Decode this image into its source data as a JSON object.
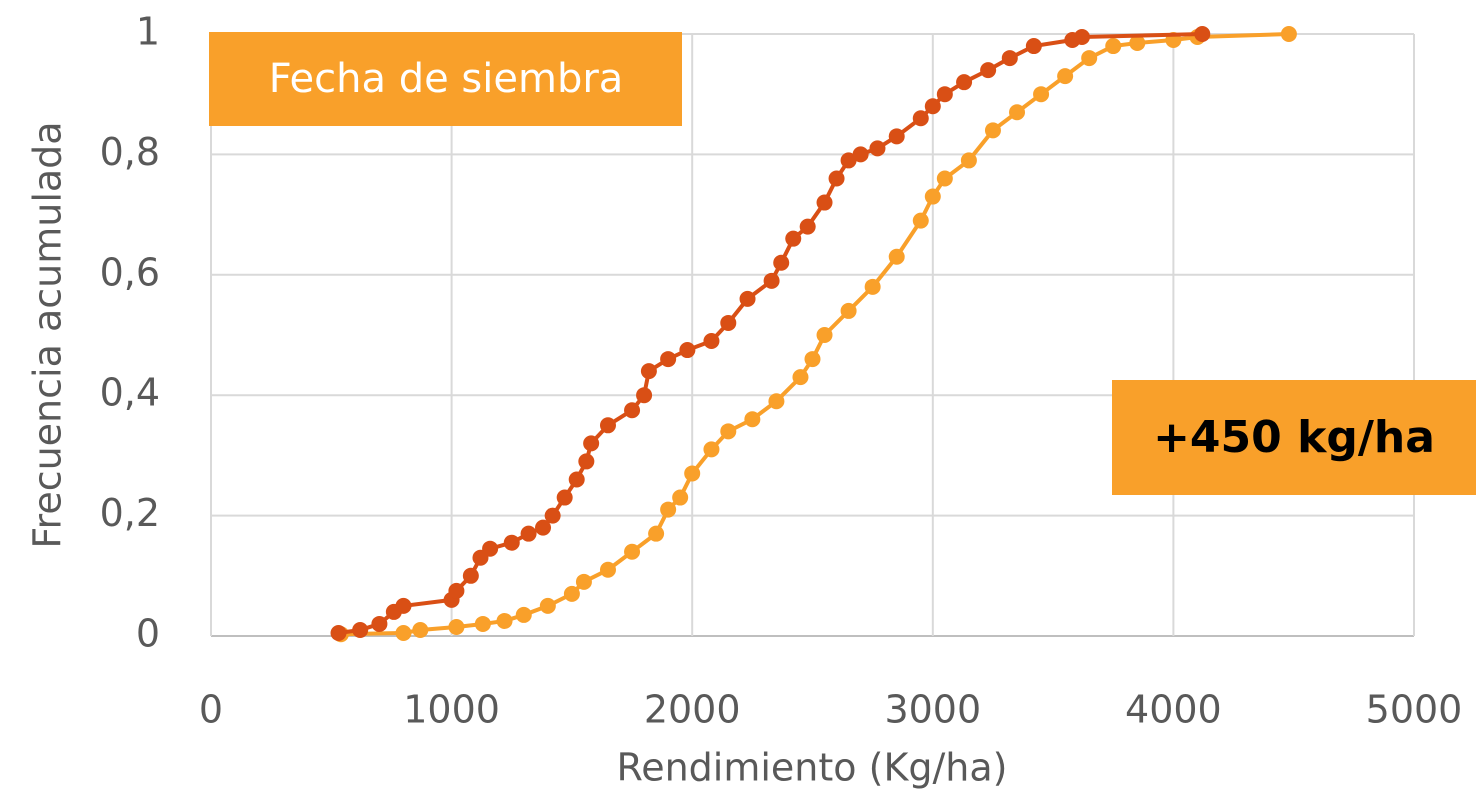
{
  "chart_data": {
    "type": "scatter",
    "xlabel": "Rendimiento (Kg/ha)",
    "ylabel": "Frecuencia acumulada",
    "annotations": [
      "Fecha de siembra",
      "+450 kg/ha"
    ],
    "annotation_color": "#f9a02a",
    "xlim": [
      0,
      5000
    ],
    "xticks": [
      0,
      1000,
      2000,
      3000,
      4000,
      5000
    ],
    "ylim": [
      0,
      1
    ],
    "yticks": [
      0,
      {
        "value": 0.2,
        "label": "0,2"
      },
      {
        "value": 0.4,
        "label": "0,4"
      },
      {
        "value": 0.6,
        "label": "0,6"
      },
      {
        "value": 0.8,
        "label": "0,8"
      },
      1
    ],
    "grid": true,
    "series": [
      {
        "color": "#f9a02a",
        "x": [
          540,
          800,
          870,
          1020,
          1130,
          1220,
          1300,
          1400,
          1500,
          1550,
          1650,
          1750,
          1850,
          1900,
          1950,
          2000,
          2080,
          2150,
          2250,
          2350,
          2450,
          2500,
          2550,
          2650,
          2750,
          2850,
          2950,
          3000,
          3050,
          3150,
          3250,
          3350,
          3450,
          3550,
          3650,
          3750,
          3850,
          4000,
          4100,
          4480
        ],
        "values": [
          0.003,
          0.005,
          0.01,
          0.015,
          0.02,
          0.025,
          0.035,
          0.05,
          0.07,
          0.09,
          0.11,
          0.14,
          0.17,
          0.21,
          0.23,
          0.27,
          0.31,
          0.34,
          0.36,
          0.39,
          0.43,
          0.46,
          0.5,
          0.54,
          0.58,
          0.63,
          0.69,
          0.73,
          0.76,
          0.79,
          0.84,
          0.87,
          0.9,
          0.93,
          0.96,
          0.98,
          0.985,
          0.99,
          0.995,
          1
        ]
      },
      {
        "color": "#d94f15",
        "x": [
          530,
          620,
          700,
          760,
          800,
          1000,
          1020,
          1080,
          1120,
          1160,
          1250,
          1320,
          1380,
          1420,
          1470,
          1520,
          1560,
          1580,
          1650,
          1750,
          1800,
          1820,
          1900,
          1980,
          2080,
          2150,
          2230,
          2330,
          2370,
          2420,
          2480,
          2550,
          2600,
          2650,
          2700,
          2770,
          2850,
          2950,
          3000,
          3050,
          3130,
          3230,
          3320,
          3420,
          3580,
          3620,
          4120
        ],
        "values": [
          0.005,
          0.01,
          0.02,
          0.04,
          0.05,
          0.06,
          0.075,
          0.1,
          0.13,
          0.145,
          0.155,
          0.17,
          0.18,
          0.2,
          0.23,
          0.26,
          0.29,
          0.32,
          0.35,
          0.375,
          0.4,
          0.44,
          0.46,
          0.475,
          0.49,
          0.52,
          0.56,
          0.59,
          0.62,
          0.66,
          0.68,
          0.72,
          0.76,
          0.79,
          0.8,
          0.81,
          0.83,
          0.86,
          0.88,
          0.9,
          0.92,
          0.94,
          0.96,
          0.98,
          0.99,
          0.995,
          1
        ]
      }
    ]
  }
}
